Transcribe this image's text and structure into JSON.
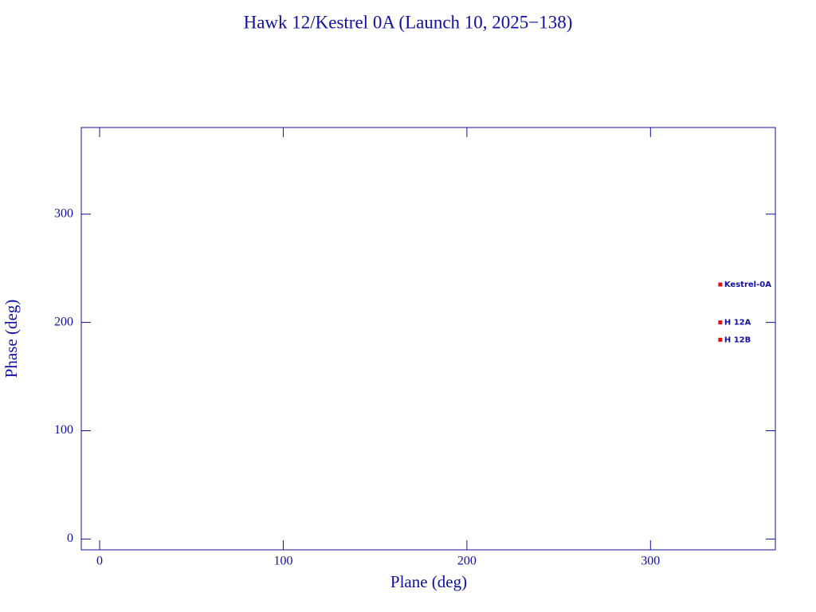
{
  "chart_data": {
    "type": "scatter",
    "title": "Hawk 12/Kestrel 0A (Launch 10, 2025−138)",
    "x_label": "Plane (deg)",
    "y_label": "Phase (deg)",
    "x": [
      338,
      338,
      338
    ],
    "y": [
      235,
      200,
      184
    ],
    "point_labels": [
      "Kestrel-0A",
      "H 12A",
      "H 12B"
    ],
    "color": "#e01010",
    "text_color": "#1010a0",
    "xlim": [
      -10,
      368
    ],
    "ylim": [
      -10,
      380
    ],
    "xticks": [
      0,
      100,
      200,
      300
    ],
    "yticks": [
      0,
      100,
      200,
      300
    ],
    "grid": false
  }
}
